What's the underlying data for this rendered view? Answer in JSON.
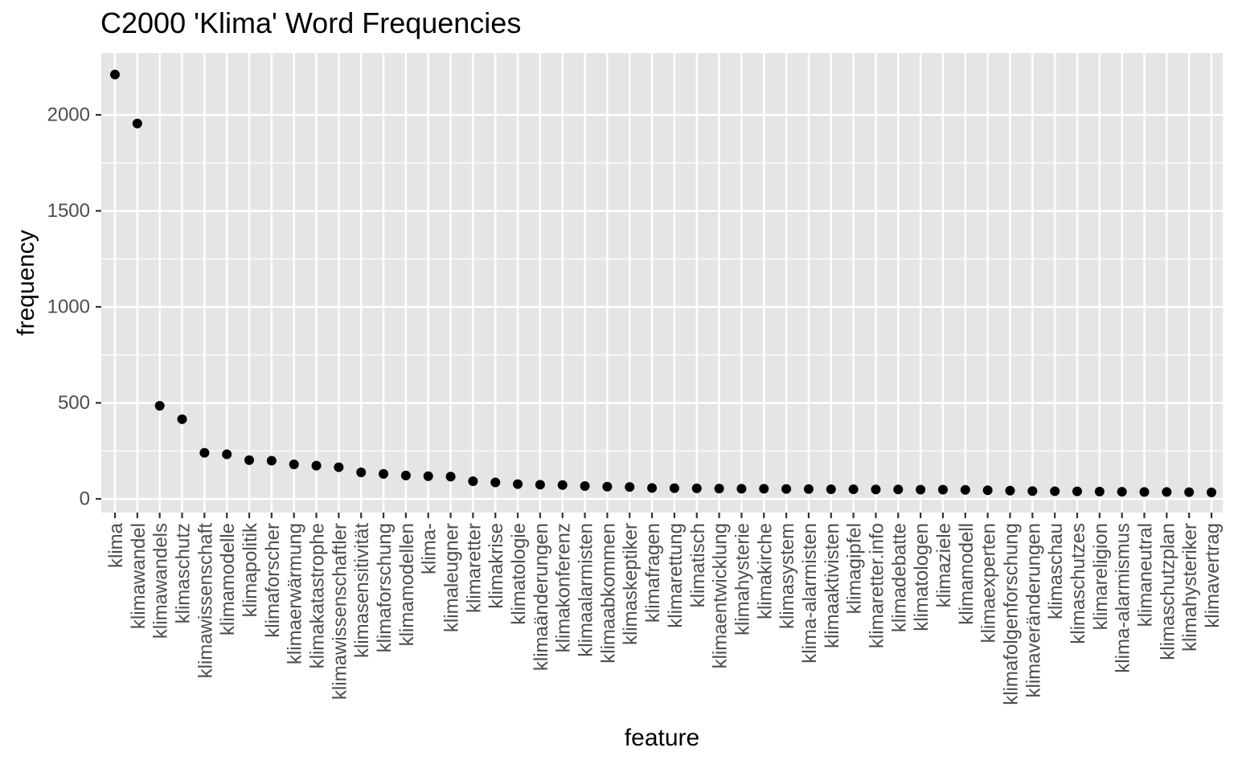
{
  "chart_data": {
    "type": "scatter",
    "title": "C2000 'Klima' Word Frequencies",
    "xlabel": "feature",
    "ylabel": "frequency",
    "ylim": [
      -80,
      2300
    ],
    "yticks": [
      0,
      500,
      1000,
      1500,
      2000
    ],
    "grid": true,
    "legend": "none",
    "colors": {
      "panel": "#e5e5e5",
      "grid": "#ffffff",
      "point": "#000000",
      "tick_text": "#4d4d4d",
      "axis_tick": "#333333"
    },
    "series": [
      {
        "categories": [
          "klima",
          "klimawandel",
          "klimawandels",
          "klimaschutz",
          "klimawissenschaft",
          "klimamodelle",
          "klimapolitik",
          "klimaforscher",
          "klimaerwärmung",
          "klimakatastrophe",
          "klimawissenschaftler",
          "klimasensitivität",
          "klimaforschung",
          "klimamodellen",
          "klima-",
          "klimaleugner",
          "klimaretter",
          "klimakrise",
          "klimatologie",
          "klimaänderungen",
          "klimakonferenz",
          "klimaalarmisten",
          "klimaabkommen",
          "klimaskeptiker",
          "klimafragen",
          "klimarettung",
          "klimatisch",
          "klimaentwicklung",
          "klimahysterie",
          "klimakirche",
          "klimasystem",
          "klima-alarmisten",
          "klimaaktivisten",
          "klimagipfel",
          "klimaretter.info",
          "klimadebatte",
          "klimatologen",
          "klimaziele",
          "klimamodell",
          "klimaexperten",
          "klimafolgenforschung",
          "klimaveränderungen",
          "klimaschau",
          "klimaschutzes",
          "klimareligion",
          "klima-alarmismus",
          "klimaneutral",
          "klimaschutzplan",
          "klimahysteriker",
          "klimavertrag"
        ],
        "values": [
          2210,
          1955,
          485,
          415,
          240,
          232,
          202,
          199,
          180,
          173,
          165,
          138,
          130,
          122,
          118,
          116,
          92,
          86,
          77,
          74,
          72,
          67,
          64,
          62,
          57,
          56,
          55,
          54,
          53,
          53,
          52,
          51,
          50,
          50,
          49,
          49,
          48,
          48,
          47,
          45,
          43,
          41,
          40,
          39,
          38,
          37,
          36,
          36,
          35,
          34
        ]
      }
    ]
  }
}
